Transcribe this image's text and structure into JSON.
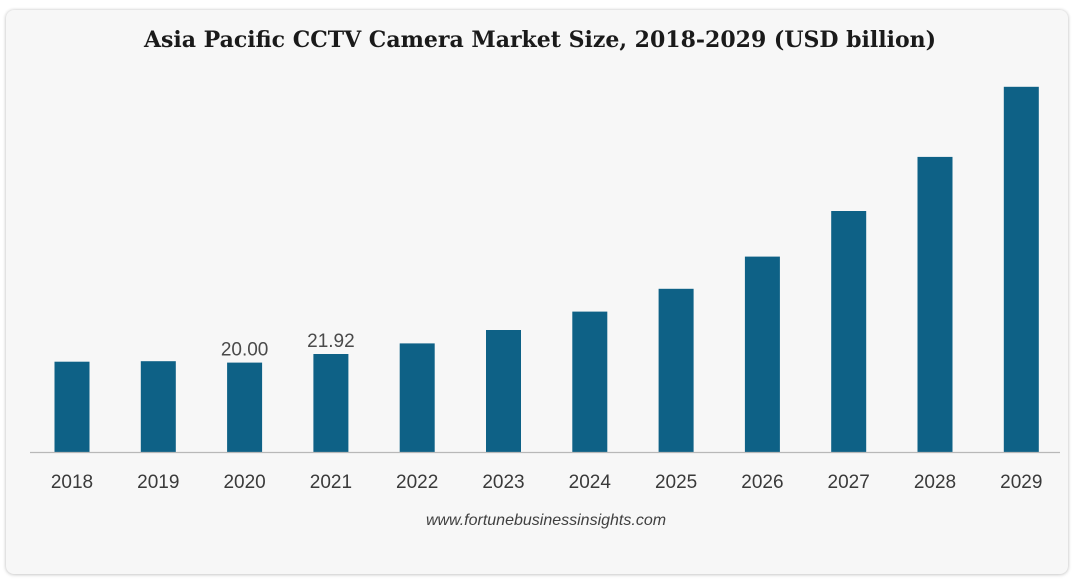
{
  "colors": {
    "bar": "#0e6186",
    "axis": "#b8b8b8",
    "background": "#f7f7f7"
  },
  "chart_data": {
    "type": "bar",
    "title": "Asia Pacific CCTV Camera Market Size, 2018-2029 (USD billion)",
    "xlabel": "",
    "ylabel": "",
    "categories": [
      "2018",
      "2019",
      "2020",
      "2021",
      "2022",
      "2023",
      "2024",
      "2025",
      "2026",
      "2027",
      "2028",
      "2029"
    ],
    "values": [
      20.2,
      20.3,
      20.0,
      21.92,
      24.3,
      27.3,
      31.4,
      36.5,
      43.7,
      53.9,
      66.0,
      81.7
    ],
    "data_labels": [
      "",
      "",
      "20.00",
      "21.92",
      "",
      "",
      "",
      "",
      "",
      "",
      "",
      ""
    ],
    "ylim": [
      0,
      85
    ],
    "grid": false,
    "legend": "none"
  },
  "source": "www.fortunebusinessinsights.com"
}
